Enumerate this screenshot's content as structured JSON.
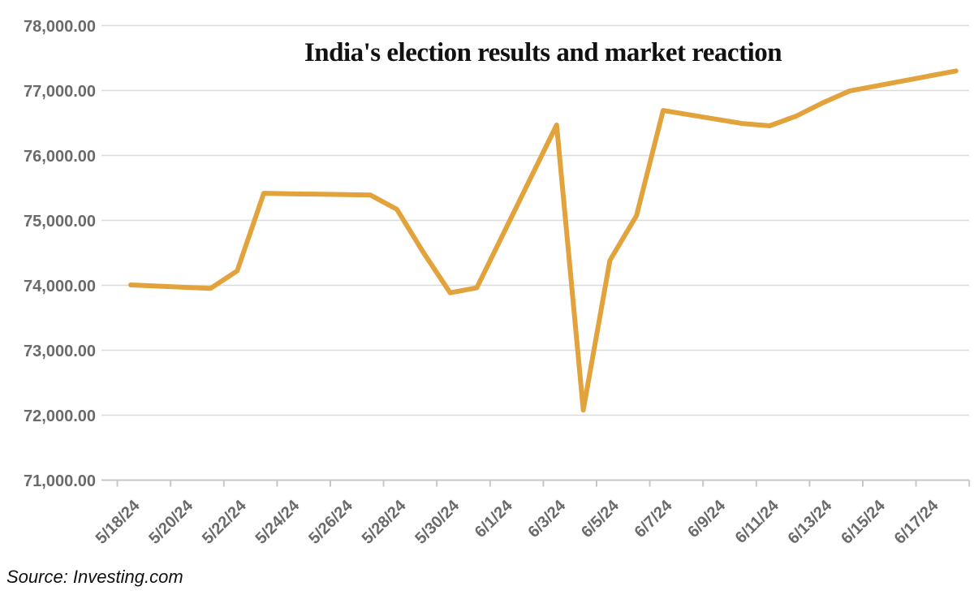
{
  "chart_data": {
    "type": "line",
    "title": "India's election results and market reaction",
    "source": "Source: Investing.com",
    "grid": "horizontal",
    "legend": "none",
    "line_color": "#E2A23C",
    "grid_color": "#DBDBDB",
    "axis_text_color": "#6A6A6A",
    "y_axis": {
      "min": 71000,
      "max": 78000,
      "ticks": [
        {
          "value": 78000,
          "label": "78,000.00"
        },
        {
          "value": 77000,
          "label": "77,000.00"
        },
        {
          "value": 76000,
          "label": "76,000.00"
        },
        {
          "value": 75000,
          "label": "75,000.00"
        },
        {
          "value": 74000,
          "label": "74,000.00"
        },
        {
          "value": 73000,
          "label": "73,000.00"
        },
        {
          "value": 72000,
          "label": "72,000.00"
        },
        {
          "value": 71000,
          "label": "71,000.00"
        }
      ]
    },
    "x_axis": {
      "unit": "day",
      "first_date": "5/18/24",
      "last_date": "6/18/24",
      "tick_labels": [
        "5/18/24",
        "5/20/24",
        "5/22/24",
        "5/24/24",
        "5/26/24",
        "5/28/24",
        "5/30/24",
        "6/1/24",
        "6/3/24",
        "6/5/24",
        "6/7/24",
        "6/9/24",
        "6/11/24",
        "6/13/24",
        "6/15/24",
        "6/17/24"
      ]
    },
    "series": [
      {
        "points": [
          {
            "date": "5/18/24",
            "value": 74006
          },
          {
            "date": "5/21/24",
            "value": 73953
          },
          {
            "date": "5/22/24",
            "value": 74221
          },
          {
            "date": "5/23/24",
            "value": 75418
          },
          {
            "date": "5/24/24",
            "value": 75410
          },
          {
            "date": "5/27/24",
            "value": 75391
          },
          {
            "date": "5/28/24",
            "value": 75170
          },
          {
            "date": "5/29/24",
            "value": 74502
          },
          {
            "date": "5/30/24",
            "value": 73885
          },
          {
            "date": "5/31/24",
            "value": 73961
          },
          {
            "date": "6/3/24",
            "value": 76469
          },
          {
            "date": "6/4/24",
            "value": 72079
          },
          {
            "date": "6/5/24",
            "value": 74382
          },
          {
            "date": "6/6/24",
            "value": 75074
          },
          {
            "date": "6/7/24",
            "value": 76693
          },
          {
            "date": "6/10/24",
            "value": 76490
          },
          {
            "date": "6/11/24",
            "value": 76456
          },
          {
            "date": "6/12/24",
            "value": 76606
          },
          {
            "date": "6/13/24",
            "value": 76811
          },
          {
            "date": "6/14/24",
            "value": 76993
          },
          {
            "date": "6/18/24",
            "value": 77301
          }
        ]
      }
    ]
  }
}
